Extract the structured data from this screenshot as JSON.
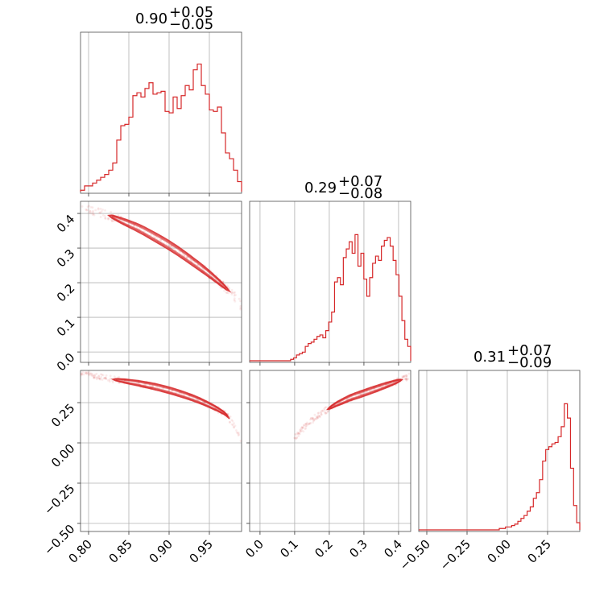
{
  "chart_data": {
    "type": "corner",
    "color": "#d62728",
    "params": [
      {
        "range": [
          0.79,
          0.99
        ],
        "ticks": [
          0.8,
          0.85,
          0.9,
          0.95
        ],
        "tick_labels": [
          "0.80",
          "0.85",
          "0.90",
          "0.95"
        ],
        "title": {
          "median": "0.90",
          "plus": "+0.05",
          "minus": "−0.05"
        },
        "hist": [
          0.01,
          0.04,
          0.04,
          0.06,
          0.08,
          0.1,
          0.12,
          0.15,
          0.2,
          0.36,
          0.46,
          0.47,
          0.52,
          0.67,
          0.69,
          0.66,
          0.72,
          0.76,
          0.68,
          0.69,
          0.7,
          0.56,
          0.55,
          0.66,
          0.58,
          0.67,
          0.74,
          0.71,
          0.85,
          0.89,
          0.74,
          0.68,
          0.57,
          0.56,
          0.59,
          0.41,
          0.27,
          0.23,
          0.15,
          0.07
        ]
      },
      {
        "range": [
          -0.03,
          0.435
        ],
        "ticks": [
          0.0,
          0.1,
          0.2,
          0.3,
          0.4
        ],
        "tick_labels": [
          "0.0",
          "0.1",
          "0.2",
          "0.3",
          "0.4"
        ],
        "title": {
          "median": "0.29",
          "plus": "+0.07",
          "minus": "−0.08"
        },
        "hist": [
          0.0,
          0.0,
          0.0,
          0.0,
          0.0,
          0.0,
          0.0,
          0.0,
          0.0,
          0.0,
          0.0,
          0.0,
          0.0,
          0.0,
          0.01,
          0.02,
          0.04,
          0.05,
          0.06,
          0.1,
          0.12,
          0.13,
          0.15,
          0.17,
          0.18,
          0.16,
          0.21,
          0.27,
          0.34,
          0.55,
          0.58,
          0.53,
          0.72,
          0.78,
          0.83,
          0.75,
          0.88,
          0.66,
          0.75,
          0.57,
          0.45,
          0.58,
          0.68,
          0.73,
          0.7,
          0.8,
          0.84,
          0.86,
          0.8,
          0.7,
          0.6,
          0.45,
          0.28,
          0.15,
          0.1
        ]
      },
      {
        "range": [
          -0.55,
          0.45
        ],
        "ticks": [
          -0.5,
          -0.25,
          0.0,
          0.25
        ],
        "tick_labels": [
          "−0.50",
          "−0.25",
          "0.00",
          "0.25"
        ],
        "title": {
          "median": "0.31",
          "plus": "+0.07",
          "minus": "−0.09"
        },
        "hist": [
          0.0,
          0.0,
          0.0,
          0.0,
          0.0,
          0.0,
          0.0,
          0.0,
          0.0,
          0.0,
          0.0,
          0.0,
          0.0,
          0.0,
          0.0,
          0.0,
          0.0,
          0.0,
          0.0,
          0.0,
          0.0,
          0.0,
          0.0,
          0.0,
          0.0,
          0.0,
          0.01,
          0.01,
          0.02,
          0.02,
          0.03,
          0.04,
          0.06,
          0.08,
          0.1,
          0.13,
          0.16,
          0.22,
          0.26,
          0.35,
          0.48,
          0.56,
          0.58,
          0.6,
          0.61,
          0.65,
          0.72,
          0.88,
          0.78,
          0.43,
          0.17,
          0.05
        ]
      }
    ],
    "pairs": [
      {
        "row": 1,
        "col": 0,
        "curve": [
          [
            0.79,
            0.43
          ],
          [
            0.8,
            0.415
          ],
          [
            0.81,
            0.405
          ],
          [
            0.82,
            0.398
          ],
          [
            0.83,
            0.39
          ],
          [
            0.84,
            0.38
          ],
          [
            0.85,
            0.37
          ],
          [
            0.86,
            0.36
          ],
          [
            0.87,
            0.348
          ],
          [
            0.88,
            0.335
          ],
          [
            0.89,
            0.322
          ],
          [
            0.9,
            0.308
          ],
          [
            0.91,
            0.293
          ],
          [
            0.92,
            0.277
          ],
          [
            0.93,
            0.26
          ],
          [
            0.94,
            0.243
          ],
          [
            0.95,
            0.225
          ],
          [
            0.96,
            0.206
          ],
          [
            0.97,
            0.186
          ],
          [
            0.98,
            0.165
          ],
          [
            0.99,
            0.13
          ]
        ],
        "contour_x": [
          0.825,
          0.975
        ],
        "spread": 0.012
      },
      {
        "row": 2,
        "col": 0,
        "curve": [
          [
            0.79,
            0.44
          ],
          [
            0.8,
            0.43
          ],
          [
            0.81,
            0.415
          ],
          [
            0.82,
            0.405
          ],
          [
            0.83,
            0.395
          ],
          [
            0.84,
            0.388
          ],
          [
            0.85,
            0.38
          ],
          [
            0.86,
            0.372
          ],
          [
            0.87,
            0.362
          ],
          [
            0.88,
            0.352
          ],
          [
            0.89,
            0.34
          ],
          [
            0.9,
            0.327
          ],
          [
            0.91,
            0.312
          ],
          [
            0.92,
            0.296
          ],
          [
            0.93,
            0.278
          ],
          [
            0.94,
            0.258
          ],
          [
            0.95,
            0.235
          ],
          [
            0.96,
            0.21
          ],
          [
            0.97,
            0.18
          ],
          [
            0.98,
            0.12
          ],
          [
            0.99,
            0.02
          ]
        ],
        "contour_x": [
          0.83,
          0.975
        ],
        "spread": 0.018
      },
      {
        "row": 2,
        "col": 1,
        "curve": [
          [
            0.1,
            0.03
          ],
          [
            0.12,
            0.08
          ],
          [
            0.14,
            0.12
          ],
          [
            0.16,
            0.16
          ],
          [
            0.18,
            0.19
          ],
          [
            0.2,
            0.215
          ],
          [
            0.22,
            0.24
          ],
          [
            0.24,
            0.26
          ],
          [
            0.26,
            0.28
          ],
          [
            0.28,
            0.295
          ],
          [
            0.3,
            0.31
          ],
          [
            0.32,
            0.325
          ],
          [
            0.34,
            0.34
          ],
          [
            0.36,
            0.355
          ],
          [
            0.38,
            0.37
          ],
          [
            0.4,
            0.385
          ],
          [
            0.42,
            0.4
          ],
          [
            0.43,
            0.41
          ]
        ],
        "contour_x": [
          0.195,
          0.41
        ],
        "spread": 0.018
      }
    ]
  }
}
